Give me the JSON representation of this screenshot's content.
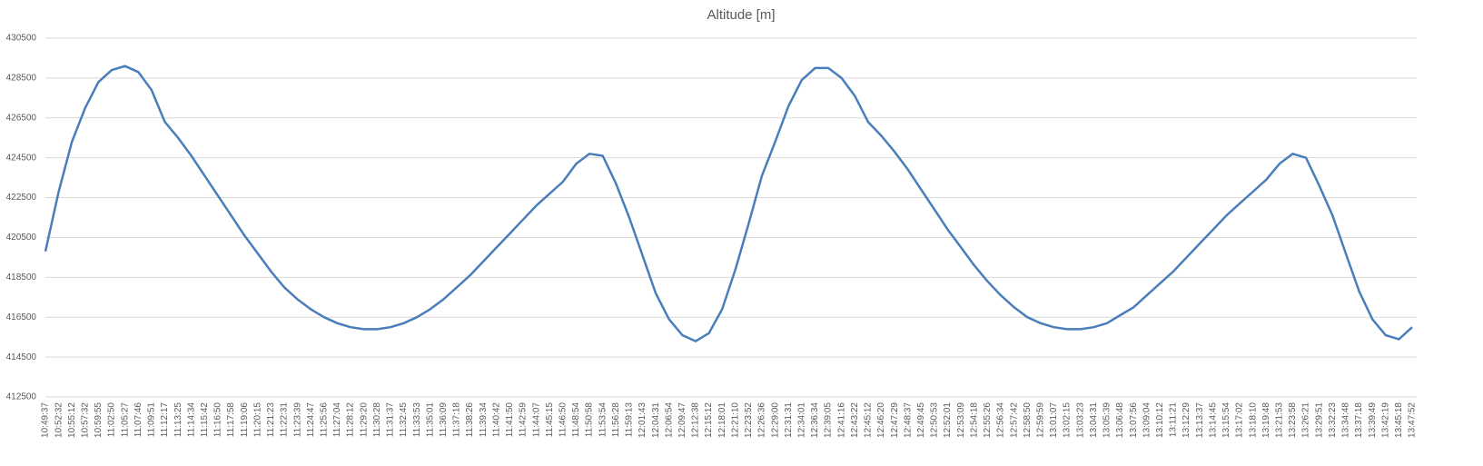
{
  "chart_data": {
    "type": "line",
    "title": "Altitude [m]",
    "categories": [
      "10:49:37",
      "10:52:32",
      "10:55:12",
      "10:57:32",
      "10:59:55",
      "11:02:50",
      "11:05:27",
      "11:07:46",
      "11:09:51",
      "11:12:17",
      "11:13:25",
      "11:14:34",
      "11:15:42",
      "11:16:50",
      "11:17:58",
      "11:19:06",
      "11:20:15",
      "11:21:23",
      "11:22:31",
      "11:23:39",
      "11:24:47",
      "11:25:56",
      "11:27:04",
      "11:28:12",
      "11:29:20",
      "11:30:28",
      "11:31:37",
      "11:32:45",
      "11:33:53",
      "11:35:01",
      "11:36:09",
      "11:37:18",
      "11:38:26",
      "11:39:34",
      "11:40:42",
      "11:41:50",
      "11:42:59",
      "11:44:07",
      "11:45:15",
      "11:46:50",
      "11:48:54",
      "11:50:58",
      "11:53:54",
      "11:56:28",
      "11:59:13",
      "12:01:43",
      "12:04:31",
      "12:06:54",
      "12:09:47",
      "12:12:38",
      "12:15:12",
      "12:18:01",
      "12:21:10",
      "12:23:52",
      "12:26:36",
      "12:29:00",
      "12:31:31",
      "12:34:01",
      "12:36:34",
      "12:39:05",
      "12:41:16",
      "12:43:22",
      "12:45:12",
      "12:46:20",
      "12:47:29",
      "12:48:37",
      "12:49:45",
      "12:50:53",
      "12:52:01",
      "12:53:09",
      "12:54:18",
      "12:55:26",
      "12:56:34",
      "12:57:42",
      "12:58:50",
      "12:59:59",
      "13:01:07",
      "13:02:15",
      "13:03:23",
      "13:04:31",
      "13:05:39",
      "13:06:48",
      "13:07:56",
      "13:09:04",
      "13:10:12",
      "13:11:21",
      "13:12:29",
      "13:13:37",
      "13:14:45",
      "13:15:54",
      "13:17:02",
      "13:18:10",
      "13:19:48",
      "13:21:53",
      "13:23:58",
      "13:26:21",
      "13:29:51",
      "13:32:23",
      "13:34:48",
      "13:37:18",
      "13:39:49",
      "13:42:19",
      "13:45:18",
      "13:47:52"
    ],
    "series": [
      {
        "color": "#4a7ebb",
        "values": [
          419800,
          422800,
          425300,
          427000,
          428300,
          428900,
          429100,
          428800,
          427900,
          426300,
          425500,
          424600,
          423600,
          422600,
          421600,
          420600,
          419700,
          418800,
          418000,
          417400,
          416900,
          416500,
          416200,
          416000,
          415900,
          415900,
          416000,
          416200,
          416500,
          416900,
          417400,
          418000,
          418600,
          419300,
          420000,
          420700,
          421400,
          422100,
          422700,
          423300,
          424200,
          424700,
          424600,
          423200,
          421500,
          419600,
          417700,
          416400,
          415600,
          415300,
          415700,
          416900,
          418900,
          421200,
          423600,
          425300,
          427100,
          428400,
          429000,
          429000,
          428500,
          427600,
          426300,
          425600,
          424800,
          423900,
          422900,
          421900,
          420900,
          420000,
          419100,
          418300,
          417600,
          417000,
          416500,
          416200,
          416000,
          415900,
          415900,
          416000,
          416200,
          416600,
          417000,
          417600,
          418200,
          418800,
          419500,
          420200,
          420900,
          421600,
          422200,
          422800,
          423400,
          424200,
          424700,
          424500,
          423100,
          421600,
          419700,
          417800,
          416400,
          415600,
          415400,
          416000
        ]
      }
    ],
    "ylim": [
      412500,
      430500
    ],
    "yticks": [
      412500,
      414500,
      416500,
      418500,
      420500,
      422500,
      424500,
      426500,
      428500,
      430500
    ],
    "grid": true
  }
}
